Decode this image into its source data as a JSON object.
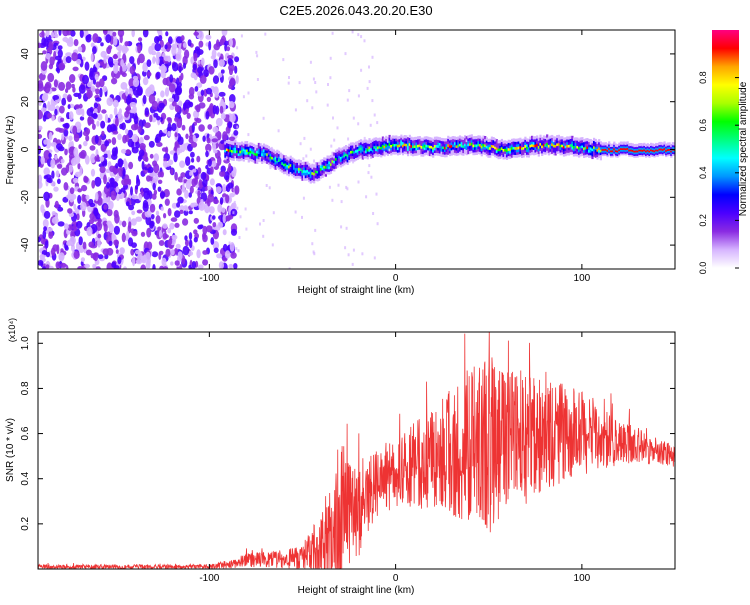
{
  "title": "C2E5.2026.043.20.20.E30",
  "chart_data": [
    {
      "type": "heatmap",
      "title": "C2E5.2026.043.20.20.E30",
      "xlabel": "Height of straight line (km)",
      "ylabel": "Frequency (Hz)",
      "xlim": [
        -192,
        150
      ],
      "ylim": [
        -50,
        50
      ],
      "xticks": [
        "-100",
        "0",
        "100"
      ],
      "yticks": [
        "-40",
        "-20",
        "0",
        "20",
        "40"
      ],
      "colorbar": {
        "label": "Normalized spectral amplitude",
        "range": [
          0,
          1
        ],
        "ticks": [
          "0.0",
          "0.2",
          "0.4",
          "0.6",
          "0.8"
        ],
        "colors": [
          "#ffffff",
          "#d6b4ff",
          "#8a2be2",
          "#4b00ff",
          "#0000ff",
          "#0096ff",
          "#00ffff",
          "#00ff80",
          "#00ff00",
          "#aaff00",
          "#ffff00",
          "#ffa500",
          "#ff0000",
          "#ff0080"
        ]
      },
      "ridge": {
        "x": [
          -90,
          -80,
          -70,
          -60,
          -50,
          -45,
          -40,
          -30,
          -20,
          0,
          20,
          40,
          60,
          80,
          100,
          110,
          150
        ],
        "freq": [
          0,
          -1,
          -2,
          -6,
          -9,
          -10,
          -8,
          -3,
          0,
          2,
          1,
          2,
          0,
          2,
          1,
          0,
          0
        ]
      }
    },
    {
      "type": "line",
      "xlabel": "Height of straight line (km)",
      "ylabel": "SNR (10 * v/v)",
      "yscale_label": "(x10⁴)",
      "xlim": [
        -192,
        150
      ],
      "ylim": [
        0,
        1.05
      ],
      "xticks": [
        "-100",
        "0",
        "100"
      ],
      "yticks": [
        "0.2",
        "0.4",
        "0.6",
        "0.8",
        "1.0"
      ],
      "color": "#ee3333",
      "series": [
        {
          "name": "SNR",
          "envelope_x": [
            -192,
            -100,
            -90,
            -80,
            -60,
            -50,
            -40,
            -35,
            -30,
            -25,
            -22,
            -20,
            -18,
            -10,
            0,
            10,
            20,
            30,
            40,
            50,
            60,
            70,
            80,
            90,
            100,
            110,
            120,
            130,
            140,
            150
          ],
          "envelope_mean": [
            0.01,
            0.01,
            0.02,
            0.04,
            0.04,
            0.05,
            0.1,
            0.15,
            0.25,
            0.3,
            0.25,
            0.2,
            0.3,
            0.38,
            0.42,
            0.45,
            0.5,
            0.52,
            0.55,
            0.55,
            0.58,
            0.58,
            0.6,
            0.6,
            0.6,
            0.58,
            0.56,
            0.55,
            0.52,
            0.5
          ],
          "envelope_amp": [
            0.01,
            0.01,
            0.02,
            0.03,
            0.04,
            0.06,
            0.15,
            0.25,
            0.35,
            0.3,
            0.2,
            0.25,
            0.2,
            0.15,
            0.15,
            0.2,
            0.22,
            0.28,
            0.35,
            0.4,
            0.3,
            0.3,
            0.25,
            0.22,
            0.2,
            0.15,
            0.1,
            0.08,
            0.06,
            0.05
          ]
        }
      ]
    }
  ]
}
